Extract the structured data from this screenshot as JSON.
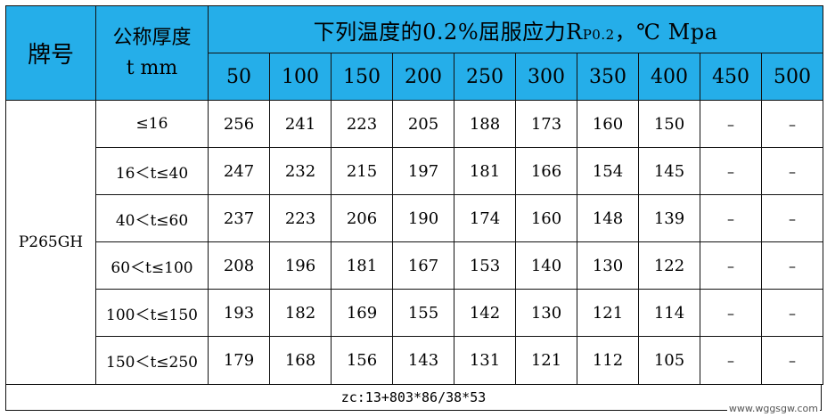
{
  "header": {
    "brand_label": "牌号",
    "thickness_label_line1": "公称厚度",
    "thickness_label_line2": "t  mm",
    "title_main": "下列温度的0.2%屈服应力R",
    "title_sub": "P0.2",
    "title_tail": "，℃ Mpa",
    "temperatures": [
      "50",
      "100",
      "150",
      "200",
      "250",
      "300",
      "350",
      "400",
      "450",
      "500"
    ]
  },
  "brand": "P265GH",
  "rows": [
    {
      "range": "≤16",
      "values": [
        "256",
        "241",
        "223",
        "205",
        "188",
        "173",
        "160",
        "150",
        "–",
        "–"
      ]
    },
    {
      "range": "16＜t≤40",
      "values": [
        "247",
        "232",
        "215",
        "197",
        "181",
        "166",
        "154",
        "145",
        "–",
        "–"
      ]
    },
    {
      "range": "40＜t≤60",
      "values": [
        "237",
        "223",
        "206",
        "190",
        "174",
        "160",
        "148",
        "139",
        "–",
        "–"
      ]
    },
    {
      "range": "60＜t≤100",
      "values": [
        "208",
        "196",
        "181",
        "167",
        "153",
        "140",
        "130",
        "122",
        "–",
        "–"
      ]
    },
    {
      "range": "100＜t≤150",
      "values": [
        "193",
        "182",
        "169",
        "155",
        "142",
        "130",
        "121",
        "114",
        "–",
        "–"
      ]
    },
    {
      "range": "150＜t≤250",
      "values": [
        "179",
        "168",
        "156",
        "143",
        "131",
        "121",
        "112",
        "105",
        "–",
        "–"
      ]
    }
  ],
  "footer": "zc:13+803*86/38*53",
  "watermark": "www.wggsgw.com",
  "colors": {
    "header_bg": "#25aee9"
  }
}
